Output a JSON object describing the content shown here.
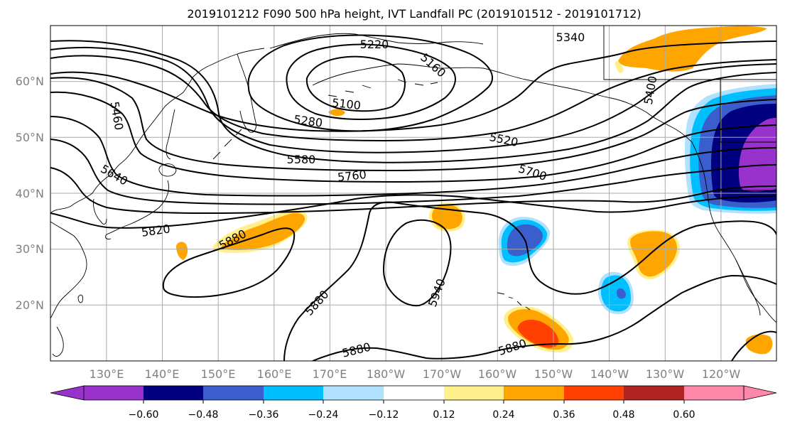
{
  "title": "2019101212 F090 500 hPa height, IVT Landfall PC (2019101512 - 2019101712)",
  "map": {
    "projection": "Plate Carree, 120°E–245°E, 10°N–70°N",
    "lon_labels": [
      "130°E",
      "140°E",
      "150°E",
      "160°E",
      "170°E",
      "180°W",
      "170°W",
      "160°W",
      "150°W",
      "140°W",
      "130°W",
      "120°W"
    ],
    "lat_labels": [
      "60°N",
      "50°N",
      "40°N",
      "30°N",
      "20°N"
    ],
    "colors": {
      "gridline": "#a9a9a9",
      "tick_label": "#808080",
      "contour": "#000000"
    }
  },
  "height_contours": {
    "units": "m",
    "labels": [
      "5220",
      "5160",
      "5100",
      "5280",
      "5340",
      "5400",
      "5460",
      "5520",
      "5580",
      "5640",
      "5700",
      "5760",
      "5820",
      "5880",
      "5940",
      "5880",
      "5880",
      "5880"
    ]
  },
  "colorbar": {
    "ticks": [
      "−0.60",
      "−0.48",
      "−0.36",
      "−0.24",
      "−0.12",
      "0.12",
      "0.24",
      "0.36",
      "0.48",
      "0.60"
    ],
    "colors": [
      "#9932cc",
      "#000080",
      "#3a5fcd",
      "#00bfff",
      "#b0e2ff",
      "#ffffff",
      "#fff08b",
      "#ffa500",
      "#ff4000",
      "#b22222",
      "#ff88aa",
      "#ff88aa"
    ]
  },
  "shading": {
    "orange": "#ffa500",
    "yellow": "#fff08b",
    "red_orange": "#ff4000",
    "deep_sky_blue": "#00bfff",
    "light_blue": "#b0e2ff",
    "royal_blue": "#3a5fcd",
    "navy": "#000080",
    "purple": "#9932cc"
  }
}
